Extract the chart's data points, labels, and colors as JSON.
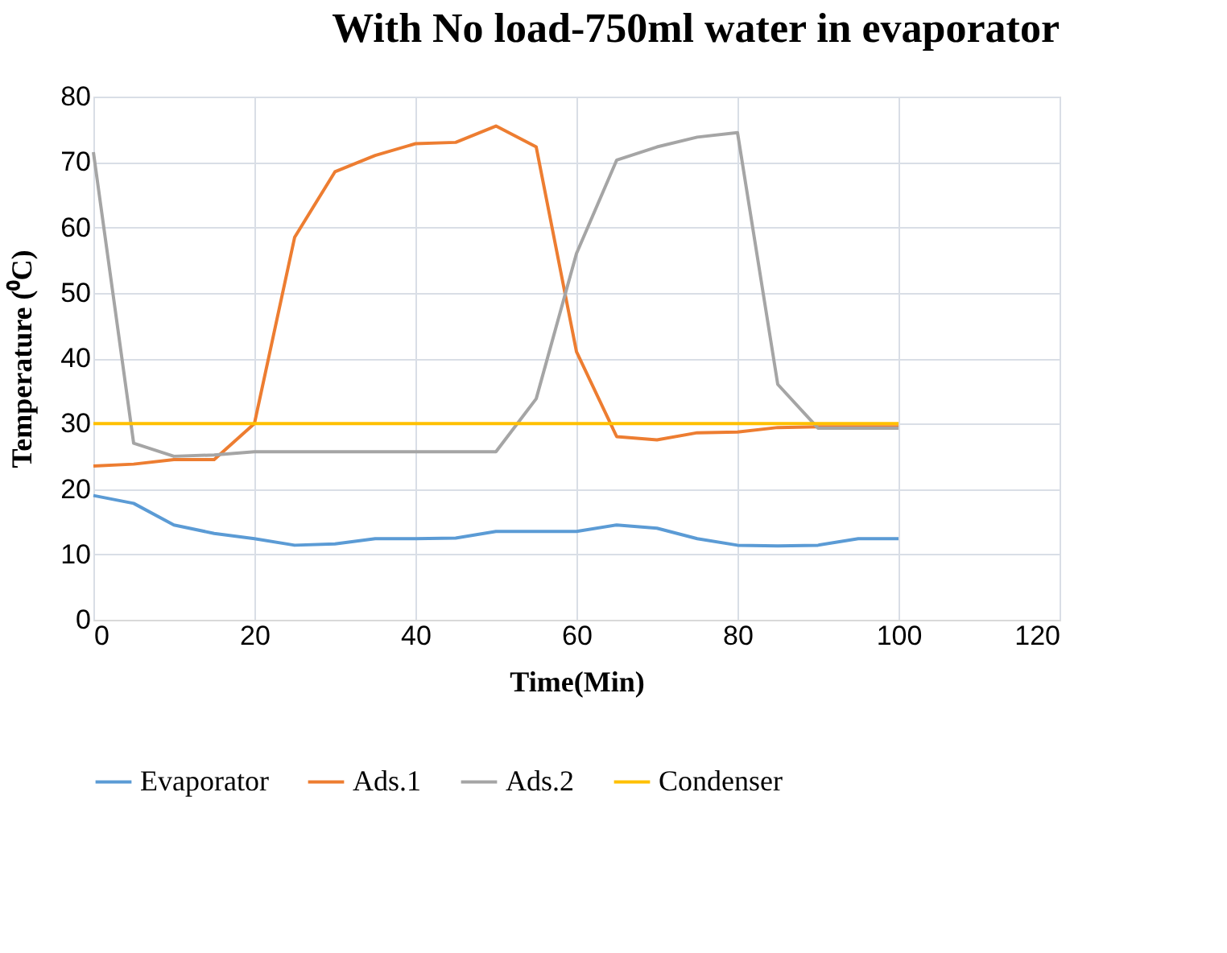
{
  "chart_data": {
    "type": "line",
    "title": "With No load-750ml water in evaporator",
    "xlabel": "Time(Min)",
    "ylabel": "Temperature (⁰C)",
    "x": [
      0,
      5,
      10,
      15,
      20,
      25,
      30,
      35,
      40,
      45,
      50,
      55,
      60,
      65,
      70,
      75,
      80,
      85,
      90,
      95,
      100
    ],
    "series": [
      {
        "name": "Evaporator",
        "color": "#5b9bd5",
        "values": [
          19,
          17.8,
          14.5,
          13.2,
          12.4,
          11.4,
          11.6,
          12.4,
          12.4,
          12.5,
          13.5,
          13.5,
          13.5,
          14.5,
          14,
          12.4,
          11.4,
          11.3,
          11.4,
          12.4,
          12.4
        ]
      },
      {
        "name": "Ads.1",
        "color": "#ed7d31",
        "values": [
          23.5,
          23.8,
          24.5,
          24.5,
          30,
          58.5,
          68.5,
          71,
          72.8,
          73,
          75.5,
          72.3,
          41,
          28,
          27.5,
          28.6,
          28.7,
          29.4,
          29.5,
          29.5,
          29.5
        ]
      },
      {
        "name": "Ads.2",
        "color": "#a5a5a5",
        "values": [
          71.5,
          27,
          25,
          25.2,
          25.7,
          25.7,
          25.7,
          25.7,
          25.7,
          25.7,
          25.7,
          33.8,
          56,
          70.3,
          72.3,
          73.8,
          74.5,
          36,
          29.3,
          29.3,
          29.3
        ]
      },
      {
        "name": "Condenser",
        "color": "#ffc000",
        "values": [
          30,
          30,
          30,
          30,
          30,
          30,
          30,
          30,
          30,
          30,
          30,
          30,
          30,
          30,
          30,
          30,
          30,
          30,
          30,
          30,
          30
        ]
      }
    ],
    "xlim": [
      0,
      120
    ],
    "xticks": [
      0,
      20,
      40,
      60,
      80,
      100,
      120
    ],
    "ylim": [
      0,
      80
    ],
    "yticks": [
      0,
      10,
      20,
      30,
      40,
      50,
      60,
      70,
      80
    ],
    "grid": true,
    "legend": "bottom",
    "marker": "none",
    "line_style": "solid"
  }
}
